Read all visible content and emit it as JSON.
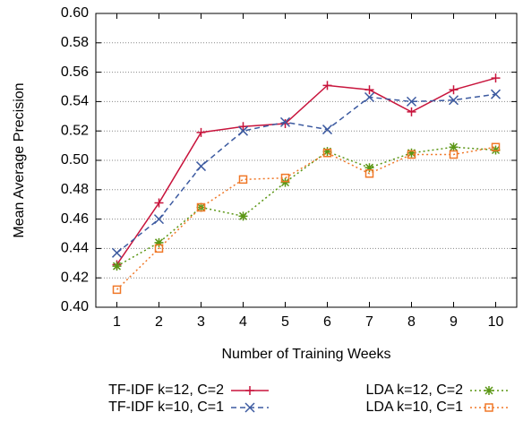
{
  "chart_data": {
    "type": "line",
    "xlabel": "Number of Training Weeks",
    "ylabel": "Mean Average Precision",
    "x": [
      1,
      2,
      3,
      4,
      5,
      6,
      7,
      8,
      9,
      10
    ],
    "xlim": [
      0.5,
      10.5
    ],
    "xticks": [
      1,
      2,
      3,
      4,
      5,
      6,
      7,
      8,
      9,
      10
    ],
    "ylim": [
      0.4,
      0.6
    ],
    "yticks": [
      {
        "value": 0.4,
        "label": "0.40"
      },
      0.42,
      0.44,
      0.46,
      0.48,
      {
        "value": 0.5,
        "label": "0.50"
      },
      0.52,
      0.54,
      0.56,
      0.58,
      {
        "value": 0.6,
        "label": "0.60"
      }
    ],
    "grid": true,
    "legend": "bottom",
    "series": [
      {
        "name": "TF-IDF k=12, C=2",
        "color": "#c8143c",
        "marker": "plus",
        "dash": "solid",
        "values": [
          0.429,
          0.471,
          0.519,
          0.523,
          0.525,
          0.551,
          0.548,
          0.533,
          0.548,
          0.556
        ]
      },
      {
        "name": "TF-IDF k=10, C=1",
        "color": "#3c5aa0",
        "marker": "cross",
        "dash": "dashed",
        "values": [
          0.437,
          0.46,
          0.496,
          0.52,
          0.526,
          0.521,
          0.543,
          0.54,
          0.541,
          0.545
        ]
      },
      {
        "name": "LDA k=12, C=2",
        "color": "#5a9614",
        "marker": "star",
        "dash": "dotted",
        "values": [
          0.428,
          0.444,
          0.468,
          0.462,
          0.485,
          0.506,
          0.495,
          0.505,
          0.509,
          0.507
        ]
      },
      {
        "name": "LDA k=10, C=1",
        "color": "#f07828",
        "marker": "square",
        "dash": "dotted",
        "values": [
          0.412,
          0.44,
          0.468,
          0.487,
          0.488,
          0.505,
          0.491,
          0.504,
          0.504,
          0.509
        ]
      }
    ]
  }
}
